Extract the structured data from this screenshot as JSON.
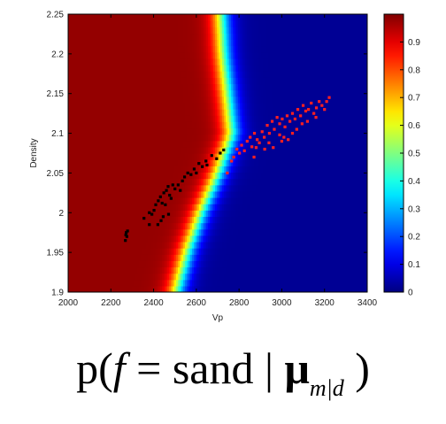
{
  "chart_data": {
    "type": "heatmap",
    "xlabel": "Vp",
    "ylabel": "Density",
    "xlim": [
      2000,
      3400
    ],
    "ylim": [
      1.9,
      2.25
    ],
    "xticks": [
      "2000",
      "2200",
      "2400",
      "2600",
      "2800",
      "3000",
      "3200",
      "3400"
    ],
    "yticks": [
      "1.9",
      "1.95",
      "2",
      "2.05",
      "2.1",
      "2.15",
      "2.2",
      "2.25"
    ],
    "colorbar": {
      "range": [
        0,
        1
      ],
      "ticks": [
        "0",
        "0.1",
        "0.2",
        "0.3",
        "0.4",
        "0.5",
        "0.6",
        "0.7",
        "0.8",
        "0.9"
      ],
      "colormap": "jet"
    },
    "boundary_p05": [
      [
        1.9,
        2505
      ],
      [
        1.95,
        2555
      ],
      [
        2.0,
        2620
      ],
      [
        2.05,
        2700
      ],
      [
        2.1,
        2765
      ],
      [
        2.15,
        2745
      ],
      [
        2.2,
        2725
      ],
      [
        2.25,
        2715
      ]
    ],
    "series": [
      {
        "color": "#000000",
        "points": [
          [
            2270,
            1.972
          ],
          [
            2272,
            1.975
          ],
          [
            2275,
            1.97
          ],
          [
            2268,
            1.965
          ],
          [
            2278,
            1.977
          ],
          [
            2355,
            1.993
          ],
          [
            2380,
            2.0
          ],
          [
            2392,
            1.998
          ],
          [
            2402,
            2.003
          ],
          [
            2410,
            2.01
          ],
          [
            2422,
            2.015
          ],
          [
            2432,
            2.02
          ],
          [
            2440,
            2.012
          ],
          [
            2448,
            2.025
          ],
          [
            2455,
            2.01
          ],
          [
            2460,
            2.028
          ],
          [
            2468,
            2.033
          ],
          [
            2475,
            2.022
          ],
          [
            2482,
            2.018
          ],
          [
            2490,
            2.035
          ],
          [
            2420,
            1.985
          ],
          [
            2435,
            1.99
          ],
          [
            2445,
            1.995
          ],
          [
            2470,
            1.998
          ],
          [
            2500,
            2.03
          ],
          [
            2515,
            2.035
          ],
          [
            2525,
            2.028
          ],
          [
            2535,
            2.04
          ],
          [
            2545,
            2.045
          ],
          [
            2560,
            2.05
          ],
          [
            2575,
            2.048
          ],
          [
            2590,
            2.055
          ],
          [
            2600,
            2.05
          ],
          [
            2612,
            2.062
          ],
          [
            2628,
            2.058
          ],
          [
            2645,
            2.065
          ],
          [
            2650,
            2.06
          ],
          [
            2672,
            2.072
          ],
          [
            2695,
            2.068
          ],
          [
            2712,
            2.075
          ],
          [
            2728,
            2.079
          ],
          [
            2380,
            1.985
          ]
        ]
      },
      {
        "color": "#ff2020",
        "points": [
          [
            2745,
            2.05
          ],
          [
            2765,
            2.065
          ],
          [
            2775,
            2.07
          ],
          [
            2790,
            2.08
          ],
          [
            2802,
            2.075
          ],
          [
            2812,
            2.085
          ],
          [
            2825,
            2.078
          ],
          [
            2838,
            2.09
          ],
          [
            2852,
            2.095
          ],
          [
            2860,
            2.083
          ],
          [
            2872,
            2.1
          ],
          [
            2885,
            2.092
          ],
          [
            2895,
            2.088
          ],
          [
            2908,
            2.102
          ],
          [
            2918,
            2.095
          ],
          [
            2932,
            2.11
          ],
          [
            2942,
            2.1
          ],
          [
            2955,
            2.115
          ],
          [
            2965,
            2.105
          ],
          [
            2978,
            2.12
          ],
          [
            2990,
            2.112
          ],
          [
            3002,
            2.118
          ],
          [
            3015,
            2.108
          ],
          [
            3025,
            2.122
          ],
          [
            3038,
            2.115
          ],
          [
            3050,
            2.125
          ],
          [
            3062,
            2.118
          ],
          [
            3075,
            2.13
          ],
          [
            3088,
            2.122
          ],
          [
            3100,
            2.135
          ],
          [
            3112,
            2.128
          ],
          [
            3125,
            2.13
          ],
          [
            3138,
            2.138
          ],
          [
            3150,
            2.125
          ],
          [
            3162,
            2.132
          ],
          [
            3175,
            2.14
          ],
          [
            3188,
            2.135
          ],
          [
            3200,
            2.13
          ],
          [
            3210,
            2.14
          ],
          [
            3222,
            2.145
          ],
          [
            3000,
            2.09
          ],
          [
            3010,
            2.095
          ],
          [
            3070,
            2.105
          ],
          [
            2870,
            2.07
          ],
          [
            2920,
            2.08
          ],
          [
            2960,
            2.082
          ],
          [
            3050,
            2.1
          ],
          [
            3120,
            2.115
          ],
          [
            3160,
            2.12
          ],
          [
            2990,
            2.098
          ],
          [
            3030,
            2.092
          ],
          [
            2880,
            2.082
          ],
          [
            2940,
            2.088
          ],
          [
            3095,
            2.112
          ]
        ]
      }
    ]
  },
  "caption": {
    "p": "p(",
    "f": "f",
    "eq": " = sand | ",
    "mu": "μ",
    "sub": "m|d",
    "close": " )"
  }
}
